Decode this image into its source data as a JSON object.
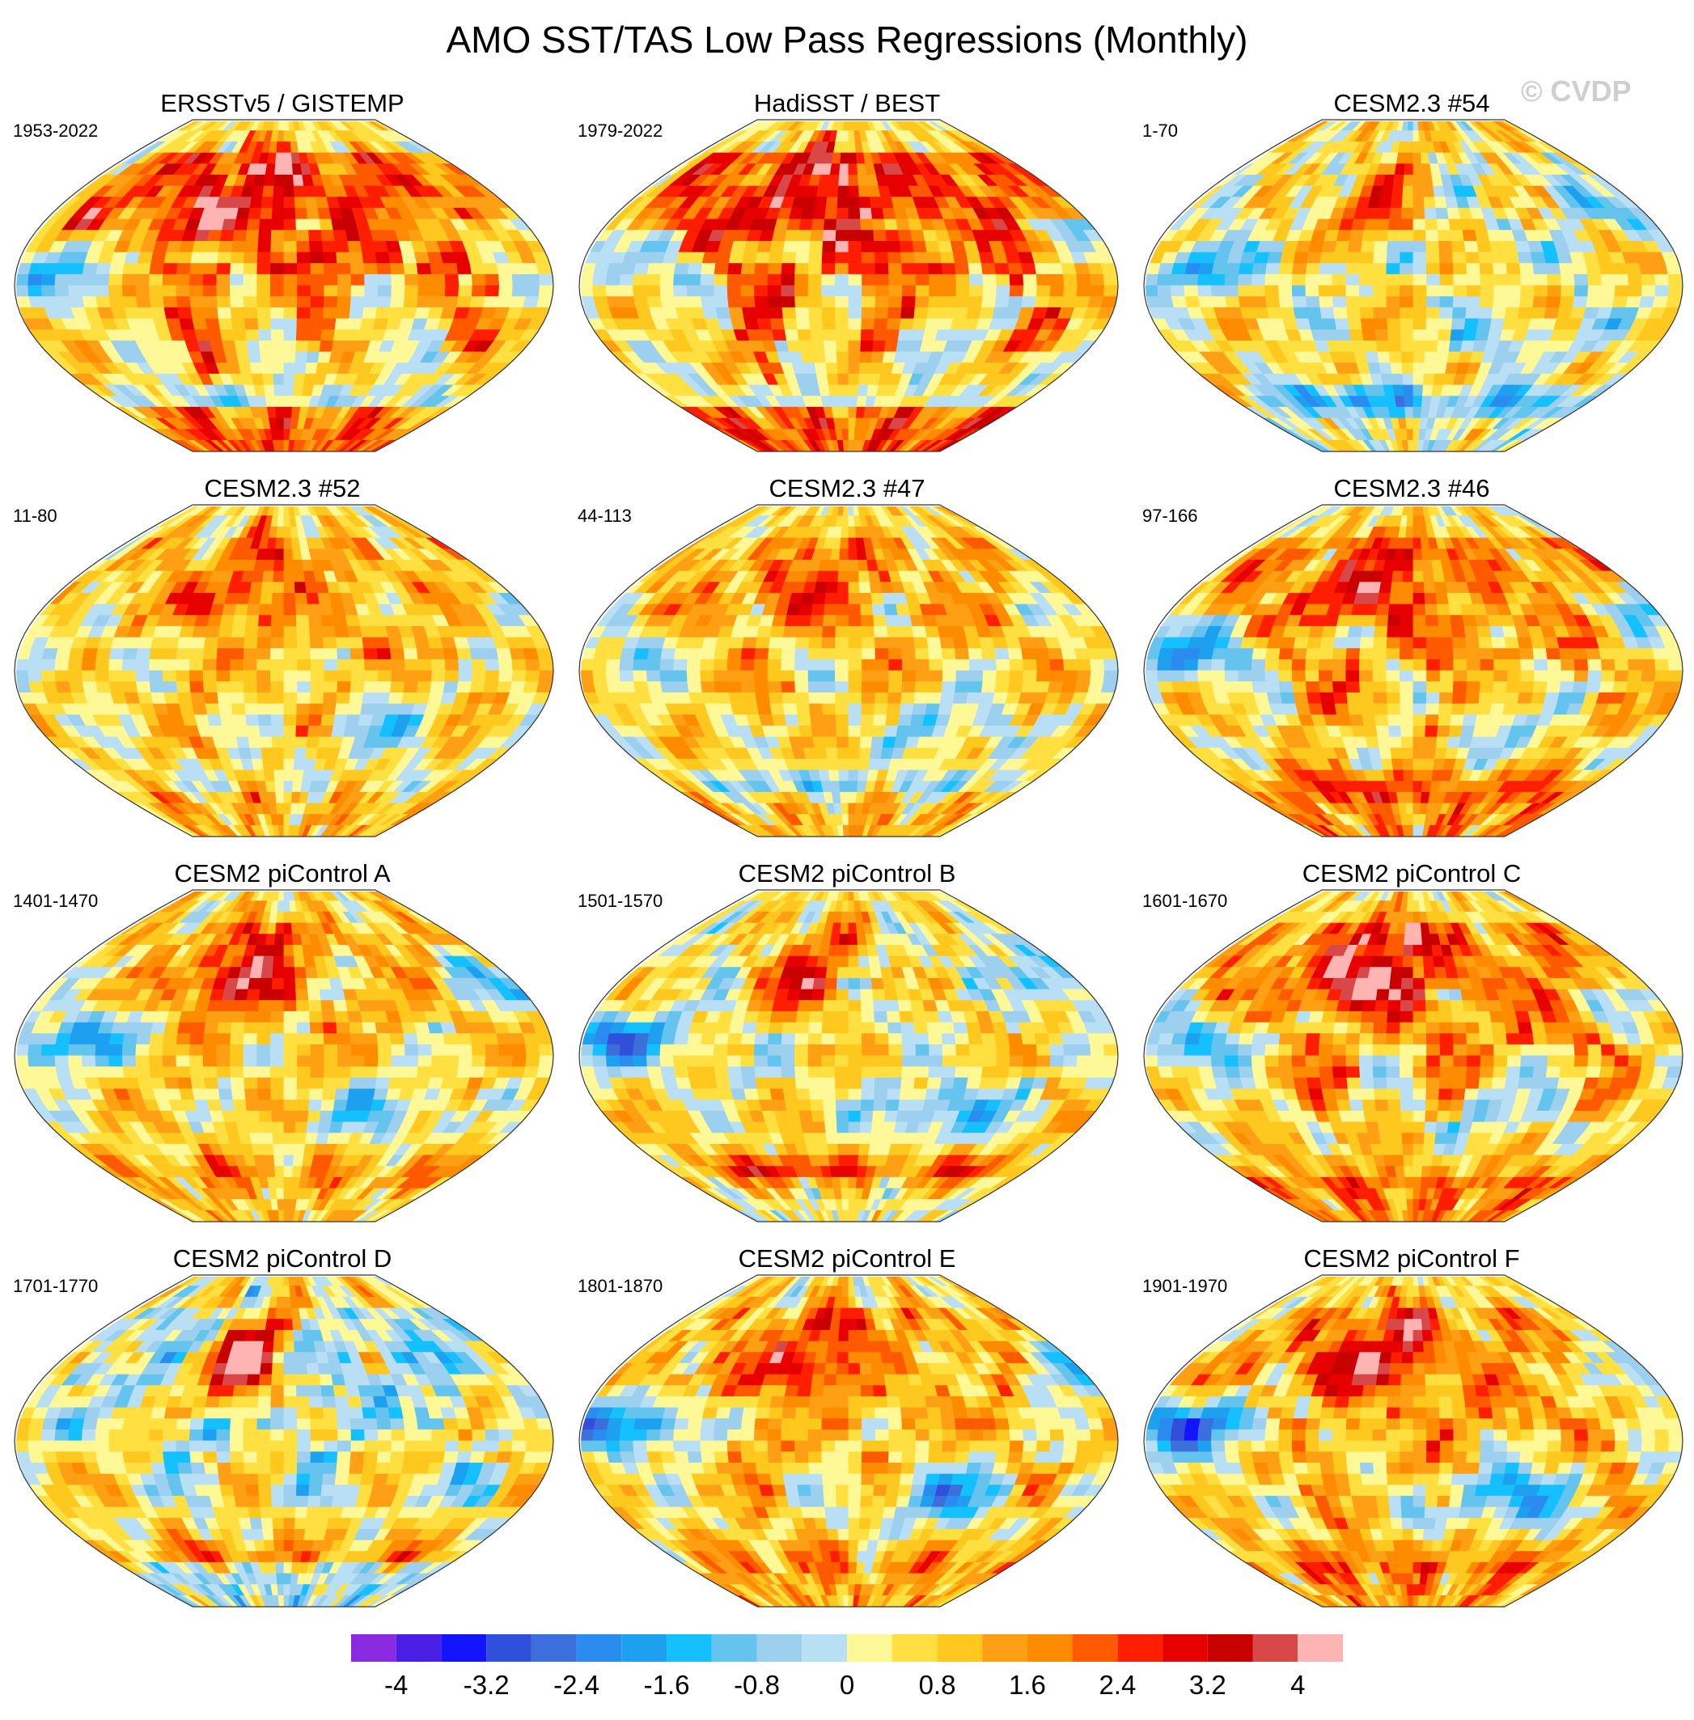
{
  "title": "AMO SST/TAS Low Pass Regressions (Monthly)",
  "watermark": "© CVDP",
  "colors": {
    "map_outline": "#333333",
    "coast": "#ffffff",
    "missing": "#ffffff"
  },
  "chart_data": {
    "type": "heatmap",
    "projection": "Robinson (global map panels)",
    "grid": "3 columns x 4 rows",
    "panels": [
      {
        "title": "ERSSTv5 / GISTEMP",
        "years": "1953-2022",
        "pattern": {
          "atl": 3.0,
          "pac": -1.6,
          "land": 2.6,
          "so": -1.2,
          "eq": -0.4,
          "seed": 11
        }
      },
      {
        "title": "HadiSST / BEST",
        "years": "1979-2022",
        "pattern": {
          "atl": 2.8,
          "pac": -1.2,
          "land": 2.8,
          "so": -0.8,
          "eq": -0.6,
          "seed": 23
        }
      },
      {
        "title": "CESM2.3 #54",
        "years": "1-70",
        "pattern": {
          "atl": 2.0,
          "pac": -2.2,
          "land": -0.6,
          "so": -2.6,
          "eq": -1.0,
          "seed": 37
        }
      },
      {
        "title": "CESM2.3 #52",
        "years": "11-80",
        "pattern": {
          "atl": 2.2,
          "pac": -0.6,
          "land": 0.8,
          "so": -0.4,
          "eq": -1.2,
          "seed": 41
        }
      },
      {
        "title": "CESM2.3 #47",
        "years": "44-113",
        "pattern": {
          "atl": 2.2,
          "pac": -1.0,
          "land": 0.8,
          "so": -1.4,
          "eq": -1.4,
          "seed": 53
        }
      },
      {
        "title": "CESM2.3 #46",
        "years": "97-166",
        "pattern": {
          "atl": 2.8,
          "pac": -2.4,
          "land": 1.6,
          "so": 2.2,
          "eq": -1.0,
          "seed": 67
        }
      },
      {
        "title": "CESM2 piControl A",
        "years": "1401-1470",
        "pattern": {
          "atl": 3.4,
          "pac": -2.6,
          "land": 0.6,
          "so": 1.2,
          "eq": -1.6,
          "seed": 71
        }
      },
      {
        "title": "CESM2 piControl B",
        "years": "1501-1570",
        "pattern": {
          "atl": 2.6,
          "pac": -2.8,
          "land": -0.4,
          "so": 2.4,
          "eq": -2.0,
          "seed": 83
        }
      },
      {
        "title": "CESM2 piControl C",
        "years": "1601-1670",
        "pattern": {
          "atl": 3.8,
          "pac": -1.8,
          "land": 1.8,
          "so": 1.0,
          "eq": -1.2,
          "seed": 97
        }
      },
      {
        "title": "CESM2 piControl D",
        "years": "1701-1770",
        "pattern": {
          "atl": 3.8,
          "pac": -0.8,
          "land": -1.6,
          "so": 1.4,
          "eq": -0.4,
          "seed": 101
        }
      },
      {
        "title": "CESM2 piControl E",
        "years": "1801-1870",
        "pattern": {
          "atl": 2.8,
          "pac": -3.0,
          "land": 1.0,
          "so": 1.2,
          "eq": -2.2,
          "seed": 113
        }
      },
      {
        "title": "CESM2 piControl F",
        "years": "1901-1970",
        "pattern": {
          "atl": 3.4,
          "pac": -3.2,
          "land": 1.4,
          "so": 1.4,
          "eq": -2.6,
          "seed": 127
        }
      }
    ],
    "colorbar": {
      "levels": [
        -4,
        -3.6,
        -3.2,
        -2.8,
        -2.4,
        -2.0,
        -1.6,
        -1.2,
        -0.8,
        -0.4,
        0,
        0.4,
        0.8,
        1.2,
        1.6,
        2.0,
        2.4,
        2.8,
        3.2,
        3.6,
        4
      ],
      "labels": [
        "-4",
        "-3.2",
        "-2.4",
        "-1.6",
        "-0.8",
        "0",
        "0.8",
        "1.6",
        "2.4",
        "3.2",
        "4"
      ],
      "colors": [
        "#8a2be2",
        "#4b1ee6",
        "#1414ff",
        "#3050dc",
        "#3c6edc",
        "#2b8cf0",
        "#1ea0f0",
        "#14c0ff",
        "#64c4ee",
        "#9cd0ee",
        "#b9dff5",
        "#fff897",
        "#ffe040",
        "#ffc81e",
        "#ffa014",
        "#ff8c00",
        "#ff5a00",
        "#ff1e00",
        "#e60000",
        "#c80000",
        "#d84848",
        "#ffb4b4"
      ]
    }
  }
}
